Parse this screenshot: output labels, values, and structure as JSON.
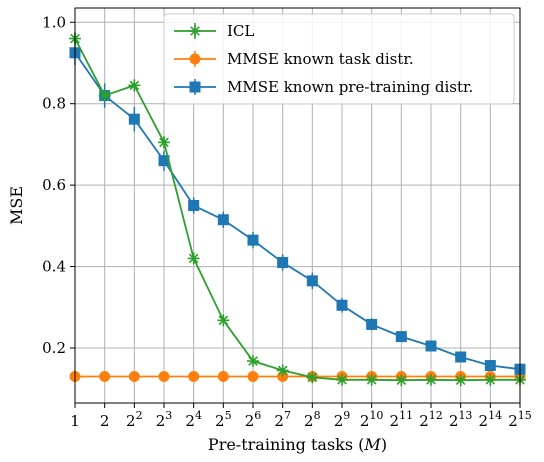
{
  "chart_data": {
    "type": "line",
    "xlabel": "Pre-training tasks (M)",
    "ylabel": "MSE",
    "x_scale": "log2",
    "x_ticks": [
      {
        "exp": 0,
        "base": "1",
        "sup": ""
      },
      {
        "exp": 1,
        "base": "2",
        "sup": ""
      },
      {
        "exp": 2,
        "base": "2",
        "sup": "2"
      },
      {
        "exp": 3,
        "base": "2",
        "sup": "3"
      },
      {
        "exp": 4,
        "base": "2",
        "sup": "4"
      },
      {
        "exp": 5,
        "base": "2",
        "sup": "5"
      },
      {
        "exp": 6,
        "base": "2",
        "sup": "6"
      },
      {
        "exp": 7,
        "base": "2",
        "sup": "7"
      },
      {
        "exp": 8,
        "base": "2",
        "sup": "8"
      },
      {
        "exp": 9,
        "base": "2",
        "sup": "9"
      },
      {
        "exp": 10,
        "base": "2",
        "sup": "10"
      },
      {
        "exp": 11,
        "base": "2",
        "sup": "11"
      },
      {
        "exp": 12,
        "base": "2",
        "sup": "12"
      },
      {
        "exp": 13,
        "base": "2",
        "sup": "13"
      },
      {
        "exp": 14,
        "base": "2",
        "sup": "14"
      },
      {
        "exp": 15,
        "base": "2",
        "sup": "15"
      }
    ],
    "y_ticks": [
      0.2,
      0.4,
      0.6,
      0.8,
      1.0
    ],
    "y_tick_labels": [
      "0.2",
      "0.4",
      "0.6",
      "0.8",
      "1.0"
    ],
    "ylim": [
      0.065,
      1.035
    ],
    "x_exponents": [
      0,
      1,
      2,
      3,
      4,
      5,
      6,
      7,
      8,
      9,
      10,
      11,
      12,
      13,
      14,
      15
    ],
    "grid": true,
    "legend_position": "top-right",
    "series": [
      {
        "name": "ICL",
        "color": "#2ca02c",
        "marker": "star",
        "values": [
          0.96,
          0.82,
          0.845,
          0.705,
          0.42,
          0.268,
          0.168,
          0.145,
          0.128,
          0.122,
          0.122,
          0.121,
          0.122,
          0.121,
          0.122,
          0.122
        ],
        "errors": [
          0.015,
          0.015,
          0.015,
          0.015,
          0.012,
          0.01,
          0.008,
          0.006,
          0.005,
          0.005,
          0.005,
          0.005,
          0.005,
          0.005,
          0.005,
          0.005
        ]
      },
      {
        "name": "MMSE known task distr.",
        "color": "#ff7f0e",
        "marker": "circle",
        "values": [
          0.13,
          0.13,
          0.13,
          0.13,
          0.13,
          0.13,
          0.13,
          0.13,
          0.13,
          0.13,
          0.13,
          0.13,
          0.13,
          0.13,
          0.13,
          0.13
        ],
        "errors": [
          0.006,
          0.006,
          0.006,
          0.006,
          0.006,
          0.006,
          0.006,
          0.006,
          0.006,
          0.006,
          0.006,
          0.006,
          0.006,
          0.006,
          0.006,
          0.006
        ]
      },
      {
        "name": "MMSE known pre-training distr.",
        "color": "#1f77b4",
        "marker": "square",
        "values": [
          0.925,
          0.82,
          0.762,
          0.66,
          0.55,
          0.515,
          0.465,
          0.41,
          0.365,
          0.305,
          0.258,
          0.228,
          0.205,
          0.178,
          0.157,
          0.148
        ],
        "errors": [
          0.03,
          0.03,
          0.03,
          0.025,
          0.02,
          0.02,
          0.02,
          0.02,
          0.02,
          0.018,
          0.015,
          0.012,
          0.012,
          0.01,
          0.008,
          0.008
        ]
      }
    ]
  }
}
